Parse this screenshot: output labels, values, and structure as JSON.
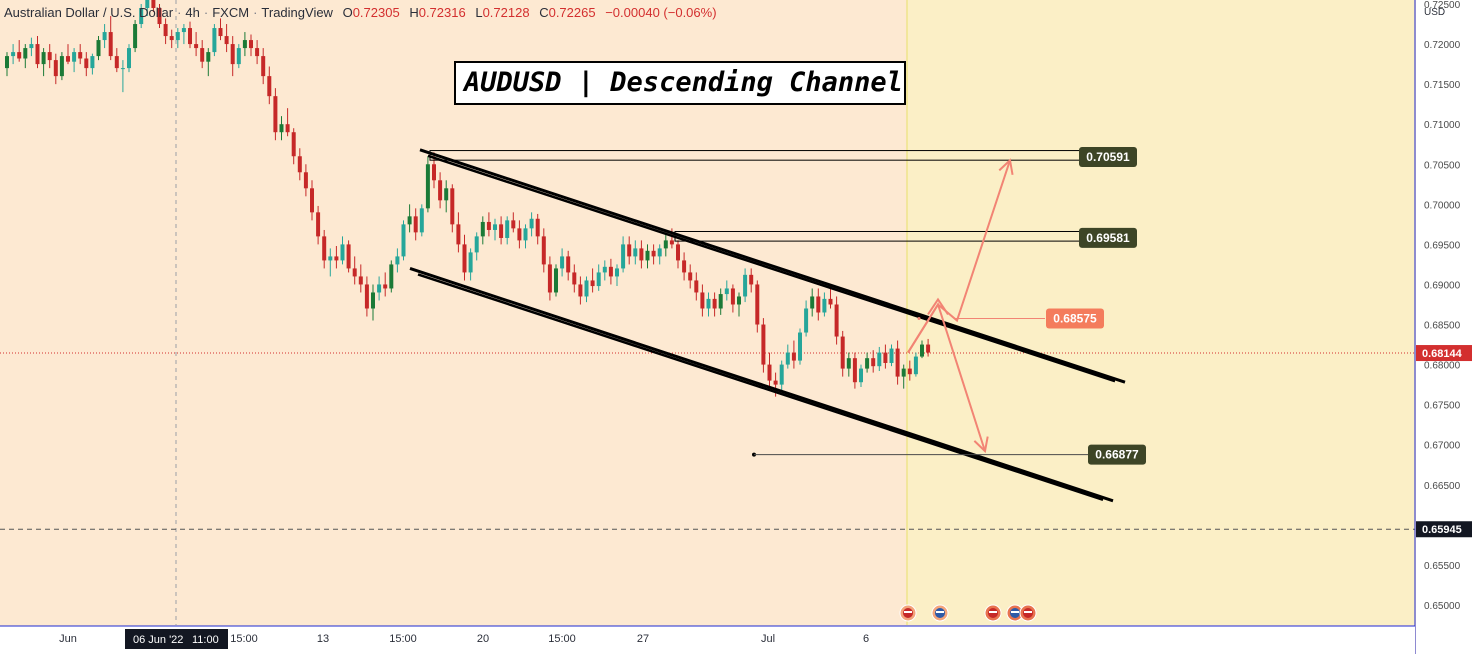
{
  "legend": {
    "symbol": "Australian Dollar / U.S. Dollar",
    "interval": "4h",
    "source": "FXCM",
    "platform": "TradingView",
    "o_label": "O",
    "o_value": "0.72305",
    "h_label": "H",
    "h_value": "0.72316",
    "l_label": "L",
    "l_value": "0.72128",
    "c_label": "C",
    "c_value": "0.72265",
    "change": "−0.00040 (−0.06%)"
  },
  "title": "AUDUSD | Descending Channel",
  "colors": {
    "background": "#fde9d2",
    "future_zone": "#fbefc6",
    "bull": "#26a69a",
    "bull_dark": "#1b7a37",
    "bear": "#c62828",
    "channel": "#000000",
    "forecast_arrow": "#f28474",
    "label_dark": "#3d4526",
    "label_orange": "#f47c5c",
    "current_price": "#d32f2f"
  },
  "chart_data": {
    "type": "candlestick",
    "title": "AUDUSD | Descending Channel",
    "currency": "USD",
    "ylim": [
      0.6475,
      0.7255
    ],
    "y_ticks": [
      "0.72500",
      "0.72000",
      "0.71500",
      "0.71000",
      "0.70500",
      "0.70000",
      "0.69500",
      "0.69000",
      "0.68500",
      "0.68000",
      "0.67500",
      "0.67000",
      "0.66500",
      "0.66000",
      "0.65500",
      "0.65000"
    ],
    "x_ticks": [
      "Jun",
      "06 Jun '22",
      "11:00",
      "15:00",
      "13",
      "15:00",
      "20",
      "15:00",
      "27",
      "Jul",
      "6"
    ],
    "candles": [
      [
        0.717,
        0.719,
        0.716,
        0.7185
      ],
      [
        0.7185,
        0.72,
        0.7175,
        0.719
      ],
      [
        0.719,
        0.7205,
        0.7178,
        0.7182
      ],
      [
        0.7182,
        0.72,
        0.717,
        0.7195
      ],
      [
        0.7195,
        0.7208,
        0.7185,
        0.72
      ],
      [
        0.72,
        0.721,
        0.717,
        0.7175
      ],
      [
        0.7175,
        0.7195,
        0.716,
        0.719
      ],
      [
        0.719,
        0.72,
        0.717,
        0.718
      ],
      [
        0.718,
        0.7188,
        0.715,
        0.716
      ],
      [
        0.716,
        0.719,
        0.7155,
        0.7185
      ],
      [
        0.7185,
        0.72,
        0.7175,
        0.7178
      ],
      [
        0.7178,
        0.7195,
        0.7165,
        0.719
      ],
      [
        0.719,
        0.72,
        0.7175,
        0.7182
      ],
      [
        0.7182,
        0.719,
        0.716,
        0.717
      ],
      [
        0.717,
        0.7188,
        0.7162,
        0.7185
      ],
      [
        0.7185,
        0.721,
        0.718,
        0.7205
      ],
      [
        0.7205,
        0.7225,
        0.7195,
        0.7215
      ],
      [
        0.7215,
        0.7235,
        0.718,
        0.7185
      ],
      [
        0.7185,
        0.7195,
        0.7165,
        0.717
      ],
      [
        0.717,
        0.718,
        0.714,
        0.717
      ],
      [
        0.717,
        0.72,
        0.7165,
        0.7195
      ],
      [
        0.7195,
        0.723,
        0.719,
        0.7225
      ],
      [
        0.7225,
        0.725,
        0.722,
        0.7245
      ],
      [
        0.7245,
        0.727,
        0.7235,
        0.726
      ],
      [
        0.726,
        0.7268,
        0.724,
        0.7245
      ],
      [
        0.7245,
        0.725,
        0.722,
        0.7225
      ],
      [
        0.7225,
        0.7232,
        0.72,
        0.721
      ],
      [
        0.721,
        0.7218,
        0.7195,
        0.7205
      ],
      [
        0.7205,
        0.722,
        0.7195,
        0.7215
      ],
      [
        0.7215,
        0.7225,
        0.72,
        0.722
      ],
      [
        0.722,
        0.7228,
        0.7195,
        0.72
      ],
      [
        0.72,
        0.7215,
        0.7185,
        0.7195
      ],
      [
        0.7195,
        0.7205,
        0.717,
        0.7178
      ],
      [
        0.7178,
        0.7195,
        0.716,
        0.719
      ],
      [
        0.719,
        0.7225,
        0.7185,
        0.722
      ],
      [
        0.722,
        0.7232,
        0.7205,
        0.721
      ],
      [
        0.721,
        0.7225,
        0.719,
        0.72
      ],
      [
        0.72,
        0.721,
        0.716,
        0.7175
      ],
      [
        0.7175,
        0.72,
        0.717,
        0.7195
      ],
      [
        0.7195,
        0.7215,
        0.7185,
        0.7205
      ],
      [
        0.7205,
        0.7212,
        0.7185,
        0.7195
      ],
      [
        0.7195,
        0.7205,
        0.7175,
        0.7185
      ],
      [
        0.7185,
        0.7195,
        0.715,
        0.716
      ],
      [
        0.716,
        0.7172,
        0.7125,
        0.7135
      ],
      [
        0.7135,
        0.7145,
        0.708,
        0.709
      ],
      [
        0.709,
        0.711,
        0.708,
        0.71
      ],
      [
        0.71,
        0.712,
        0.7085,
        0.709
      ],
      [
        0.709,
        0.7095,
        0.705,
        0.706
      ],
      [
        0.706,
        0.707,
        0.703,
        0.704
      ],
      [
        0.704,
        0.705,
        0.701,
        0.702
      ],
      [
        0.702,
        0.703,
        0.698,
        0.699
      ],
      [
        0.699,
        0.6998,
        0.695,
        0.696
      ],
      [
        0.696,
        0.6968,
        0.692,
        0.693
      ],
      [
        0.693,
        0.6945,
        0.691,
        0.6935
      ],
      [
        0.6935,
        0.6948,
        0.692,
        0.693
      ],
      [
        0.693,
        0.696,
        0.6925,
        0.695
      ],
      [
        0.695,
        0.6955,
        0.6915,
        0.692
      ],
      [
        0.692,
        0.6935,
        0.69,
        0.691
      ],
      [
        0.691,
        0.6925,
        0.689,
        0.69
      ],
      [
        0.69,
        0.691,
        0.686,
        0.687
      ],
      [
        0.687,
        0.69,
        0.6855,
        0.689
      ],
      [
        0.689,
        0.691,
        0.688,
        0.69
      ],
      [
        0.69,
        0.6915,
        0.6885,
        0.6895
      ],
      [
        0.6895,
        0.693,
        0.689,
        0.6925
      ],
      [
        0.6925,
        0.6945,
        0.6915,
        0.6935
      ],
      [
        0.6935,
        0.698,
        0.693,
        0.6975
      ],
      [
        0.6975,
        0.7,
        0.6965,
        0.6985
      ],
      [
        0.6985,
        0.6995,
        0.6955,
        0.6965
      ],
      [
        0.6965,
        0.7,
        0.696,
        0.6995
      ],
      [
        0.6995,
        0.706,
        0.699,
        0.705
      ],
      [
        0.705,
        0.7065,
        0.702,
        0.703
      ],
      [
        0.703,
        0.704,
        0.6995,
        0.7005
      ],
      [
        0.7005,
        0.703,
        0.699,
        0.702
      ],
      [
        0.702,
        0.7025,
        0.6965,
        0.6975
      ],
      [
        0.6975,
        0.699,
        0.694,
        0.695
      ],
      [
        0.695,
        0.6962,
        0.6905,
        0.6915
      ],
      [
        0.6915,
        0.6945,
        0.6905,
        0.694
      ],
      [
        0.694,
        0.6965,
        0.693,
        0.696
      ],
      [
        0.696,
        0.6985,
        0.695,
        0.6978
      ],
      [
        0.6978,
        0.699,
        0.696,
        0.6968
      ],
      [
        0.6968,
        0.6982,
        0.6955,
        0.6975
      ],
      [
        0.6975,
        0.6985,
        0.695,
        0.6958
      ],
      [
        0.6958,
        0.6985,
        0.695,
        0.698
      ],
      [
        0.698,
        0.699,
        0.6965,
        0.697
      ],
      [
        0.697,
        0.698,
        0.6945,
        0.6955
      ],
      [
        0.6955,
        0.6975,
        0.6945,
        0.697
      ],
      [
        0.697,
        0.699,
        0.696,
        0.6982
      ],
      [
        0.6982,
        0.6988,
        0.695,
        0.696
      ],
      [
        0.696,
        0.697,
        0.6915,
        0.6925
      ],
      [
        0.6925,
        0.6935,
        0.688,
        0.689
      ],
      [
        0.689,
        0.6925,
        0.6885,
        0.692
      ],
      [
        0.692,
        0.6945,
        0.691,
        0.6935
      ],
      [
        0.6935,
        0.6942,
        0.6905,
        0.6915
      ],
      [
        0.6915,
        0.6925,
        0.689,
        0.69
      ],
      [
        0.69,
        0.691,
        0.6875,
        0.6885
      ],
      [
        0.6885,
        0.691,
        0.6878,
        0.6905
      ],
      [
        0.6905,
        0.692,
        0.689,
        0.6898
      ],
      [
        0.6898,
        0.6925,
        0.6892,
        0.6915
      ],
      [
        0.6915,
        0.693,
        0.6905,
        0.6922
      ],
      [
        0.6922,
        0.6932,
        0.69,
        0.691
      ],
      [
        0.691,
        0.6925,
        0.6898,
        0.692
      ],
      [
        0.692,
        0.696,
        0.6915,
        0.695
      ],
      [
        0.695,
        0.696,
        0.6925,
        0.6935
      ],
      [
        0.6935,
        0.6955,
        0.6925,
        0.6945
      ],
      [
        0.6945,
        0.6955,
        0.692,
        0.693
      ],
      [
        0.693,
        0.695,
        0.692,
        0.6942
      ],
      [
        0.6942,
        0.695,
        0.6925,
        0.6935
      ],
      [
        0.6935,
        0.695,
        0.6925,
        0.6945
      ],
      [
        0.6945,
        0.6965,
        0.6935,
        0.6955
      ],
      [
        0.6955,
        0.697,
        0.6945,
        0.695
      ],
      [
        0.695,
        0.6955,
        0.692,
        0.693
      ],
      [
        0.693,
        0.694,
        0.6905,
        0.6915
      ],
      [
        0.6915,
        0.6925,
        0.6895,
        0.6905
      ],
      [
        0.6905,
        0.6915,
        0.688,
        0.689
      ],
      [
        0.689,
        0.69,
        0.686,
        0.687
      ],
      [
        0.687,
        0.689,
        0.686,
        0.6882
      ],
      [
        0.6882,
        0.689,
        0.686,
        0.687
      ],
      [
        0.687,
        0.6895,
        0.6862,
        0.6888
      ],
      [
        0.6888,
        0.6905,
        0.688,
        0.6895
      ],
      [
        0.6895,
        0.69,
        0.6865,
        0.6875
      ],
      [
        0.6875,
        0.689,
        0.686,
        0.6885
      ],
      [
        0.6885,
        0.692,
        0.6878,
        0.6912
      ],
      [
        0.6912,
        0.692,
        0.689,
        0.69
      ],
      [
        0.69,
        0.6905,
        0.684,
        0.685
      ],
      [
        0.685,
        0.6858,
        0.679,
        0.68
      ],
      [
        0.68,
        0.6815,
        0.677,
        0.678
      ],
      [
        0.678,
        0.679,
        0.676,
        0.6775
      ],
      [
        0.6775,
        0.6805,
        0.6768,
        0.68
      ],
      [
        0.68,
        0.6825,
        0.6795,
        0.6815
      ],
      [
        0.6815,
        0.683,
        0.6795,
        0.6805
      ],
      [
        0.6805,
        0.6845,
        0.68,
        0.684
      ],
      [
        0.684,
        0.688,
        0.6835,
        0.687
      ],
      [
        0.687,
        0.6895,
        0.686,
        0.6885
      ],
      [
        0.6885,
        0.6895,
        0.6855,
        0.6865
      ],
      [
        0.6865,
        0.689,
        0.686,
        0.6882
      ],
      [
        0.6882,
        0.6898,
        0.687,
        0.6875
      ],
      [
        0.6875,
        0.6885,
        0.6825,
        0.6835
      ],
      [
        0.6835,
        0.6842,
        0.6785,
        0.6795
      ],
      [
        0.6795,
        0.6815,
        0.6785,
        0.6808
      ],
      [
        0.6808,
        0.6815,
        0.677,
        0.6778
      ],
      [
        0.6778,
        0.68,
        0.6772,
        0.6795
      ],
      [
        0.6795,
        0.6815,
        0.679,
        0.6808
      ],
      [
        0.6808,
        0.6818,
        0.679,
        0.6798
      ],
      [
        0.6798,
        0.6822,
        0.6792,
        0.6815
      ],
      [
        0.6815,
        0.6825,
        0.6795,
        0.6802
      ],
      [
        0.6802,
        0.6825,
        0.6798,
        0.682
      ],
      [
        0.682,
        0.683,
        0.6775,
        0.6785
      ],
      [
        0.6785,
        0.68,
        0.677,
        0.6795
      ],
      [
        0.6795,
        0.6805,
        0.678,
        0.6788
      ],
      [
        0.6788,
        0.6815,
        0.6785,
        0.681
      ],
      [
        0.681,
        0.683,
        0.6808,
        0.6825
      ],
      [
        0.6825,
        0.6832,
        0.681,
        0.6815
      ]
    ],
    "levels": [
      {
        "name": "resistance-2",
        "value": "0.70591",
        "style": "dark"
      },
      {
        "name": "resistance-1",
        "value": "0.69581",
        "style": "dark"
      },
      {
        "name": "channel-breakout",
        "value": "0.68575",
        "style": "orange"
      },
      {
        "name": "support",
        "value": "0.66877",
        "style": "dark"
      }
    ],
    "current_price": "0.68144",
    "dashed_price": "0.65945",
    "channel": {
      "upper": [
        [
          0.7068,
          0.6778
        ]
      ],
      "lower": [
        [
          0.692,
          0.663
        ]
      ]
    },
    "forecast_paths": [
      [
        0.6815,
        0.6875,
        0.6855,
        0.7055
      ],
      [
        0.6815,
        0.6875,
        0.6692
      ]
    ],
    "grid": false,
    "legend_position": "top-left"
  }
}
